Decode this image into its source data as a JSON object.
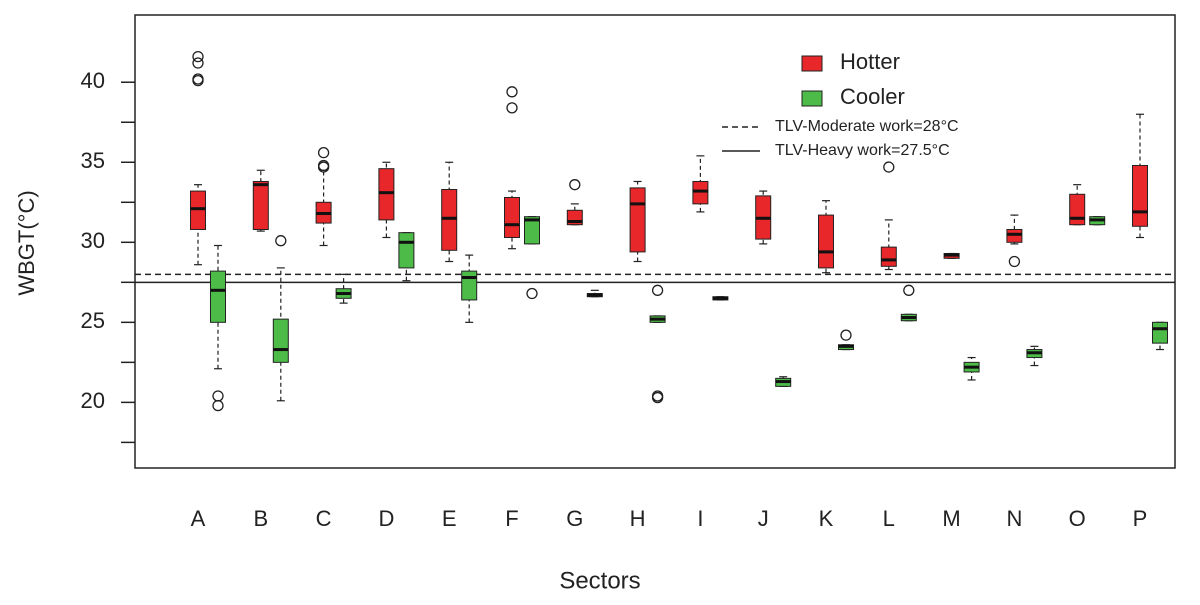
{
  "chart_data": {
    "type": "box",
    "x_label": "Sectors",
    "y_label": "WBGT(°C)",
    "categories": [
      "A",
      "B",
      "C",
      "D",
      "E",
      "F",
      "G",
      "H",
      "I",
      "J",
      "K",
      "L",
      "M",
      "N",
      "O",
      "P"
    ],
    "ylim": [
      15.9,
      44.2
    ],
    "yticks": [
      20,
      25,
      30,
      35,
      40
    ],
    "minor_yticks": [
      17.5,
      22.5,
      27.5,
      32.5,
      37.5
    ],
    "ref_lines": [
      {
        "value": 28,
        "label": "TLV-Moderate work=28°C",
        "style": "dashed"
      },
      {
        "value": 27.5,
        "label": "TLV-Heavy work=27.5°C",
        "style": "solid"
      }
    ],
    "series": [
      {
        "name": "Hotter",
        "color": "#e8272a",
        "boxes": [
          {
            "low": 28.6,
            "q1": 30.8,
            "median": 32.1,
            "q3": 33.2,
            "high": 33.6,
            "outliers": [
              40.1,
              40.2,
              41.2,
              41.6
            ]
          },
          {
            "low": 30.7,
            "q1": 30.8,
            "median": 33.6,
            "q3": 33.8,
            "high": 34.5,
            "outliers": []
          },
          {
            "low": 29.8,
            "q1": 31.2,
            "median": 31.8,
            "q3": 32.5,
            "high": 34.5,
            "outliers": [
              34.7,
              34.8,
              35.6
            ]
          },
          {
            "low": 30.3,
            "q1": 31.4,
            "median": 33.1,
            "q3": 34.6,
            "high": 35.0,
            "outliers": []
          },
          {
            "low": 28.8,
            "q1": 29.5,
            "median": 31.5,
            "q3": 33.3,
            "high": 35.0,
            "outliers": []
          },
          {
            "low": 29.6,
            "q1": 30.3,
            "median": 31.1,
            "q3": 32.8,
            "high": 33.2,
            "outliers": [
              38.4,
              39.4
            ]
          },
          {
            "low": 31.1,
            "q1": 31.1,
            "median": 31.3,
            "q3": 32.0,
            "high": 32.4,
            "outliers": [
              33.6
            ]
          },
          {
            "low": 28.8,
            "q1": 29.4,
            "median": 32.4,
            "q3": 33.4,
            "high": 33.8,
            "outliers": []
          },
          {
            "low": 31.9,
            "q1": 32.4,
            "median": 33.2,
            "q3": 33.8,
            "high": 35.4,
            "outliers": []
          },
          {
            "low": 29.9,
            "q1": 30.2,
            "median": 31.5,
            "q3": 32.9,
            "high": 33.2,
            "outliers": []
          },
          {
            "low": 28.1,
            "q1": 28.4,
            "median": 29.4,
            "q3": 31.7,
            "high": 32.6,
            "outliers": []
          },
          {
            "low": 28.3,
            "q1": 28.5,
            "median": 28.9,
            "q3": 29.7,
            "high": 31.4,
            "outliers": [
              34.7
            ]
          },
          {
            "low": 29.0,
            "q1": 29.0,
            "median": 29.2,
            "q3": 29.3,
            "high": 29.3,
            "outliers": []
          },
          {
            "low": 29.9,
            "q1": 30.0,
            "median": 30.5,
            "q3": 30.8,
            "high": 31.7,
            "outliers": [
              28.8
            ]
          },
          {
            "low": 31.1,
            "q1": 31.1,
            "median": 31.5,
            "q3": 33.0,
            "high": 33.6,
            "outliers": []
          },
          {
            "low": 30.3,
            "q1": 31.0,
            "median": 31.9,
            "q3": 34.8,
            "high": 38.0,
            "outliers": []
          }
        ]
      },
      {
        "name": "Cooler",
        "color": "#4cbb47",
        "boxes": [
          {
            "low": 22.1,
            "q1": 25.0,
            "median": 27.0,
            "q3": 28.2,
            "high": 29.8,
            "outliers": [
              20.4,
              19.8
            ]
          },
          {
            "low": 20.1,
            "q1": 22.5,
            "median": 23.3,
            "q3": 25.2,
            "high": 28.4,
            "outliers": [
              30.1
            ]
          },
          {
            "low": 26.2,
            "q1": 26.5,
            "median": 26.8,
            "q3": 27.1,
            "high": 28.0,
            "outliers": []
          },
          {
            "low": 27.6,
            "q1": 28.4,
            "median": 30.0,
            "q3": 30.6,
            "high": 30.6,
            "outliers": []
          },
          {
            "low": 25.0,
            "q1": 26.4,
            "median": 27.8,
            "q3": 28.2,
            "high": 29.2,
            "outliers": []
          },
          {
            "low": 29.9,
            "q1": 29.9,
            "median": 31.4,
            "q3": 31.6,
            "high": 31.6,
            "outliers": [
              26.8
            ]
          },
          {
            "low": 26.6,
            "q1": 26.6,
            "median": 26.7,
            "q3": 26.8,
            "high": 27.0,
            "outliers": []
          },
          {
            "low": 25.0,
            "q1": 25.0,
            "median": 25.2,
            "q3": 25.4,
            "high": 25.4,
            "outliers": [
              27.0,
              20.4,
              20.3
            ]
          },
          {
            "low": 26.4,
            "q1": 26.4,
            "median": 26.5,
            "q3": 26.6,
            "high": 26.6,
            "outliers": []
          },
          {
            "low": 21.0,
            "q1": 21.0,
            "median": 21.3,
            "q3": 21.5,
            "high": 21.6,
            "outliers": []
          },
          {
            "low": 23.3,
            "q1": 23.3,
            "median": 23.5,
            "q3": 23.6,
            "high": 23.6,
            "outliers": [
              24.2
            ]
          },
          {
            "low": 25.1,
            "q1": 25.1,
            "median": 25.3,
            "q3": 25.5,
            "high": 25.5,
            "outliers": [
              27.0
            ]
          },
          {
            "low": 21.4,
            "q1": 21.9,
            "median": 22.2,
            "q3": 22.5,
            "high": 22.8,
            "outliers": []
          },
          {
            "low": 22.3,
            "q1": 22.8,
            "median": 23.1,
            "q3": 23.3,
            "high": 23.5,
            "outliers": []
          },
          {
            "low": 31.1,
            "q1": 31.1,
            "median": 31.4,
            "q3": 31.6,
            "high": 31.6,
            "outliers": []
          },
          {
            "low": 23.3,
            "q1": 23.7,
            "median": 24.6,
            "q3": 25.0,
            "high": 25.0,
            "outliers": []
          }
        ]
      }
    ]
  }
}
